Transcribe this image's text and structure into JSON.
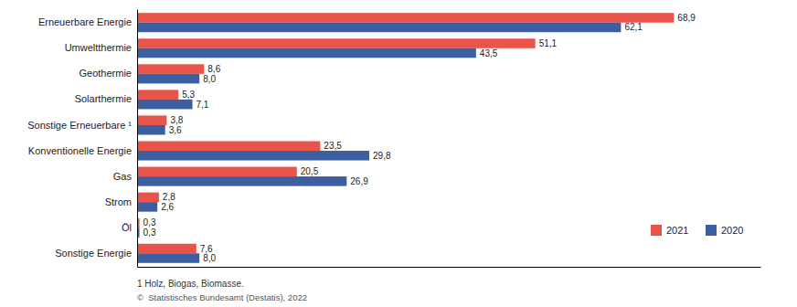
{
  "chart_data": {
    "type": "bar",
    "orientation": "horizontal",
    "categories": [
      "Erneuerbare Energie",
      "Umweltthermie",
      "Geothermie",
      "Solarthermie",
      "Sonstige Erneuerbare ¹",
      "Konventionelle Energie",
      "Gas",
      "Strom",
      "Öl",
      "Sonstige Energie"
    ],
    "series": [
      {
        "name": "2021",
        "color": "#e8534a",
        "values": [
          68.9,
          51.1,
          8.6,
          5.3,
          3.8,
          23.5,
          20.5,
          2.8,
          0.3,
          7.6
        ],
        "value_labels": [
          "68,9",
          "51,1",
          "8,6",
          "5,3",
          "3,8",
          "23,5",
          "20,5",
          "2,8",
          "0,3",
          "7,6"
        ]
      },
      {
        "name": "2020",
        "color": "#3b5fa0",
        "values": [
          62.1,
          43.5,
          8.0,
          7.1,
          3.6,
          29.8,
          26.9,
          2.6,
          0.3,
          8.0
        ],
        "value_labels": [
          "62,1",
          "43,5",
          "8,0",
          "7,1",
          "3,6",
          "29,8",
          "26,9",
          "2,6",
          "0,3",
          "8,0"
        ]
      }
    ],
    "xlim": [
      0,
      80
    ],
    "data_labels": true,
    "tick_labels": "y",
    "legend": "lower right",
    "annotations": [
      "1 Holz, Biogas, Biomasse.",
      "©  Statistisches Bundesamt (Destatis), 2022"
    ]
  }
}
